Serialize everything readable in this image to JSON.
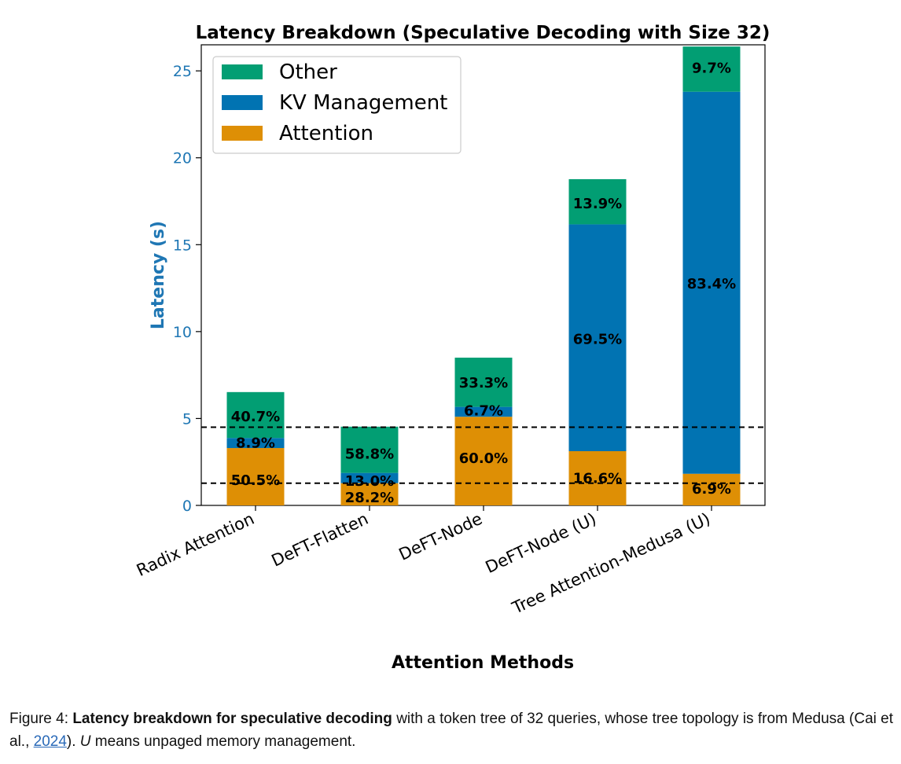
{
  "chart_data": {
    "type": "bar",
    "stacked": true,
    "title": "Latency Breakdown (Speculative Decoding with Size 32)",
    "xlabel": "Attention Methods",
    "ylabel": "Latency (s)",
    "ylim": [
      0,
      26.5
    ],
    "yticks": [
      0,
      5,
      10,
      15,
      20,
      25
    ],
    "categories": [
      "Radix Attention",
      "DeFT-Flatten",
      "DeFT-Node",
      "DeFT-Node (U)",
      "Tree Attention-Medusa (U)"
    ],
    "series": [
      {
        "name": "Attention",
        "color": "#de8f05",
        "values": [
          3.3,
          1.28,
          5.1,
          3.12,
          1.82
        ],
        "labels": [
          "50.5%",
          "28.2%",
          "60.0%",
          "16.6%",
          "6.9%"
        ]
      },
      {
        "name": "KV Management",
        "color": "#0173b2",
        "values": [
          0.58,
          0.59,
          0.57,
          13.05,
          21.98
        ],
        "labels": [
          "8.9%",
          "13.0%",
          "6.7%",
          "69.5%",
          "83.4%"
        ]
      },
      {
        "name": "Other",
        "color": "#029e73",
        "values": [
          2.64,
          2.66,
          2.83,
          2.6,
          2.6
        ],
        "labels": [
          "40.7%",
          "58.8%",
          "33.3%",
          "13.9%",
          "9.7%"
        ]
      }
    ],
    "reference_lines": [
      4.5,
      1.28
    ],
    "legend": {
      "position": "top-left",
      "order": [
        "Other",
        "KV Management",
        "Attention"
      ]
    },
    "grid": false
  },
  "caption": {
    "prefix": "Figure 4: ",
    "bold": "Latency breakdown for speculative decoding",
    "text1": " with a token tree of 32 queries, whose tree topology is from Medusa (Cai et al., ",
    "ref": "2024",
    "text2": "). ",
    "italic": "U",
    "text3": " means unpaged memory management."
  }
}
